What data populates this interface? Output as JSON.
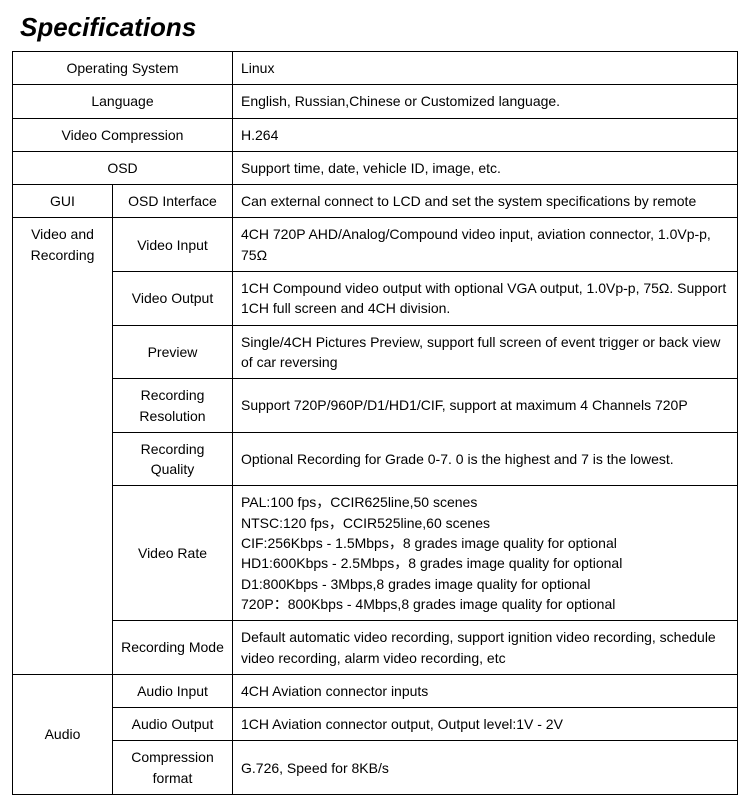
{
  "heading": "Specifications",
  "rows": {
    "os_label": "Operating System",
    "os_value": "Linux",
    "lang_label": "Language",
    "lang_value": "English, Russian,Chinese or Customized language.",
    "vc_label": "Video Compression",
    "vc_value": "H.264",
    "osd_label": "OSD",
    "osd_value": "Support    time, date, vehicle ID, image, etc.",
    "gui_label": "GUI",
    "gui_sub": "OSD Interface",
    "gui_value": "Can external connect to LCD and set the system specifications by remote",
    "vr_label": "Video and Recording",
    "vi_label": "Video Input",
    "vi_value": "4CH 720P AHD/Analog/Compound video input, aviation connector, 1.0Vp-p, 75Ω",
    "vo_label": "Video Output",
    "vo_value": "1CH Compound video output with optional VGA output, 1.0Vp-p, 75Ω. Support 1CH full screen and 4CH division.",
    "pv_label": "Preview",
    "pv_value": "Single/4CH Pictures Preview, support full screen of event trigger or back view of car reversing",
    "rr_label": "Recording Resolution",
    "rr_value": "Support 720P/960P/D1/HD1/CIF, support at maximum 4 Channels 720P",
    "rq_label": "Recording Quality",
    "rq_value": "Optional Recording for Grade 0-7. 0 is the highest and 7 is the lowest.",
    "vrate_label": "Video Rate",
    "vrate_l1": "PAL:100 fps，CCIR625line,50 scenes",
    "vrate_l2": "NTSC:120 fps，CCIR525line,60 scenes",
    "vrate_l3": "CIF:256Kbps - 1.5Mbps，8 grades image quality for optional",
    "vrate_l4": "HD1:600Kbps - 2.5Mbps，8 grades image quality for optional",
    "vrate_l5": "D1:800Kbps - 3Mbps,8 grades image quality for optional",
    "vrate_l6": "720P：800Kbps - 4Mbps,8 grades image quality for optional",
    "rm_label": "Recording Mode",
    "rm_value": "Default automatic video recording, support ignition video recording, schedule video recording, alarm video recording, etc",
    "audio_label": "Audio",
    "ai_label": "Audio Input",
    "ai_value": "4CH Aviation connector inputs",
    "ao_label": "Audio Output",
    "ao_value": "1CH Aviation connector output, Output level:1V - 2V",
    "cf_label": "Compression format",
    "cf_value": "G.726, Speed for 8KB/s"
  }
}
